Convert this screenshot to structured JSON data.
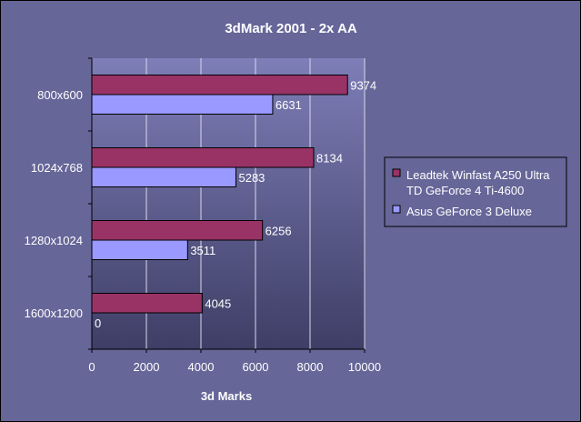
{
  "chart_data": {
    "type": "bar",
    "orientation": "horizontal",
    "title": "3dMark 2001 - 2x AA",
    "xlabel": "3d Marks",
    "ylabel": "",
    "categories": [
      "800x600",
      "1024x768",
      "1280x1024",
      "1600x1200"
    ],
    "series": [
      {
        "name": "Leadtek Winfast A250 Ultra TD GeForce 4 Ti-4600",
        "legend_lines": [
          "Leadtek Winfast A250 Ultra",
          "TD GeForce 4 Ti-4600"
        ],
        "color": "#993366",
        "values": [
          9374,
          8134,
          6256,
          4045
        ]
      },
      {
        "name": "Asus GeForce 3 Deluxe",
        "legend_lines": [
          "Asus GeForce 3 Deluxe"
        ],
        "color": "#9999FF",
        "values": [
          6631,
          5283,
          3511,
          0
        ]
      }
    ],
    "xlim": [
      0,
      10000
    ],
    "xticks": [
      0,
      2000,
      4000,
      6000,
      8000,
      10000
    ],
    "grid": true,
    "legend_position": "right",
    "colors": {
      "background": "#666699",
      "plot_area": "#5a5a8c",
      "gridline": "#d8d8e8"
    }
  }
}
